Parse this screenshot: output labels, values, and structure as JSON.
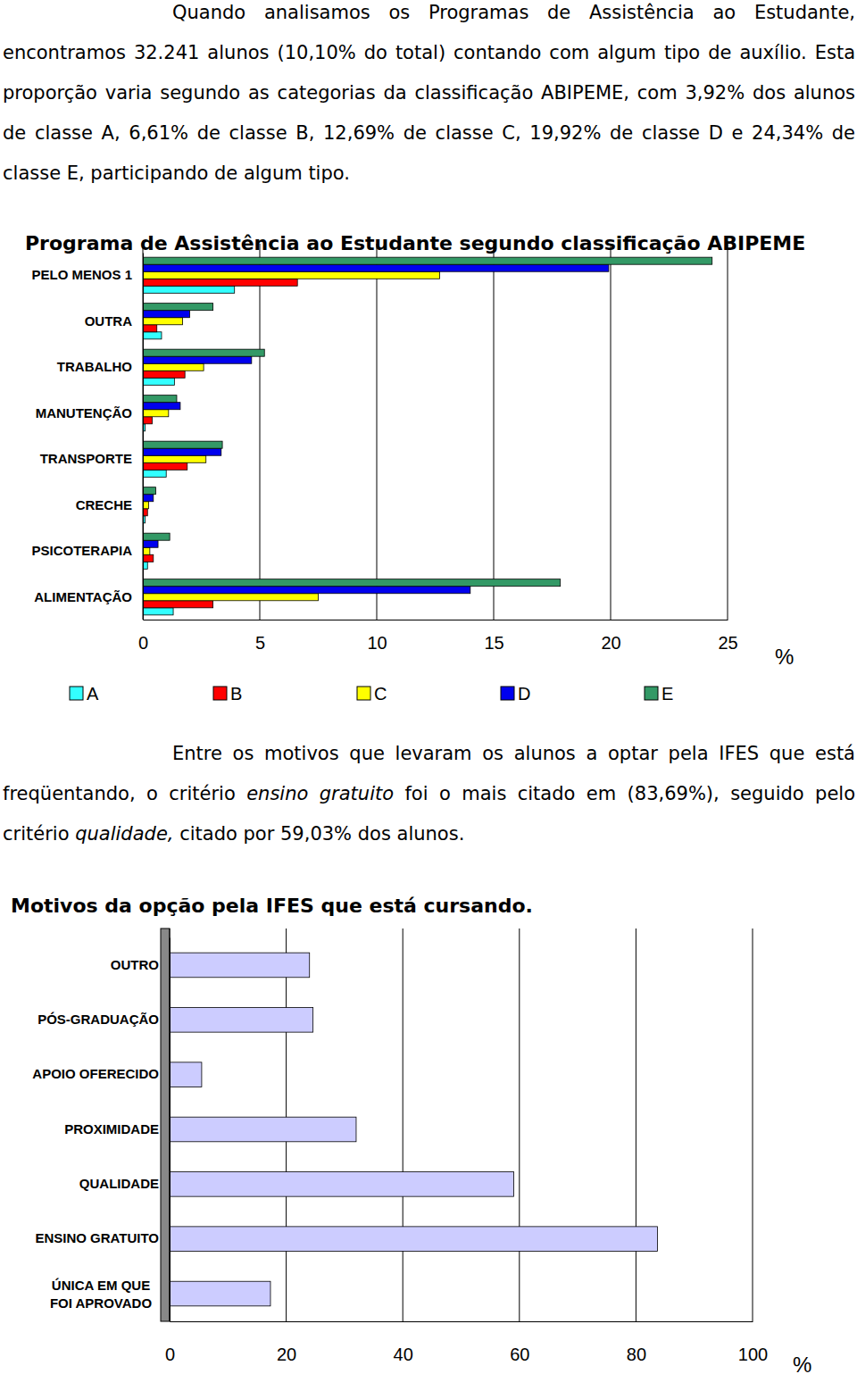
{
  "paragraphs": [
    {
      "runs": [
        {
          "text": "Quando analisamos os Programas de Assistência ao Estudante, encontramos 32.241 alunos (10,10% do total) contando com algum tipo de auxílio. Esta proporção varia segundo as categorias da classificação ABIPEME, com 3,92% dos alunos de classe A, 6,61% de classe B, 12,69% de classe C, 19,92% de classe D e 24,34% de classe E, participando de algum tipo."
        }
      ]
    },
    {
      "runs": [
        {
          "text": "Entre os motivos que levaram os alunos a optar pela IFES que está freqüentando, o critério "
        },
        {
          "text": "ensino gratuito",
          "italic": true
        },
        {
          "text": " foi o mais citado em (83,69%), seguido pelo critério "
        },
        {
          "text": "qualidade,",
          "italic": true
        },
        {
          "text": " citado por 59,03% dos alunos."
        }
      ]
    }
  ],
  "chart_data": [
    {
      "type": "bar",
      "orientation": "horizontal",
      "title": "Programa de Assistência ao Estudante segundo classificação ABIPEME",
      "categories": [
        "PELO MENOS 1",
        "OUTRA",
        "TRABALHO",
        "MANUTENÇÃO",
        "TRANSPORTE",
        "CRECHE",
        "PSICOTERAPIA",
        "ALIMENTAÇÃO"
      ],
      "series": [
        {
          "name": "A",
          "color": "#33ffff",
          "values": [
            3.92,
            0.8,
            1.35,
            0.1,
            1.0,
            0.1,
            0.2,
            1.3
          ]
        },
        {
          "name": "B",
          "color": "#ff0000",
          "values": [
            6.61,
            0.6,
            1.8,
            0.4,
            1.9,
            0.2,
            0.45,
            3.0
          ]
        },
        {
          "name": "C",
          "color": "#ffff00",
          "values": [
            12.69,
            1.7,
            2.6,
            1.1,
            2.7,
            0.25,
            0.3,
            7.5
          ]
        },
        {
          "name": "D",
          "color": "#0000ee",
          "values": [
            19.92,
            2.0,
            4.65,
            1.6,
            3.35,
            0.45,
            0.65,
            14.0
          ]
        },
        {
          "name": "E",
          "color": "#339966",
          "values": [
            24.34,
            3.0,
            5.2,
            1.45,
            3.4,
            0.55,
            1.15,
            17.85
          ]
        }
      ],
      "xlim": [
        0,
        25
      ],
      "xticks": [
        0,
        5,
        10,
        15,
        20,
        25
      ],
      "xlabel": "%",
      "grid": true,
      "legend": "bottom"
    },
    {
      "type": "bar",
      "orientation": "horizontal",
      "title": "Motivos da opção pela IFES que está cursando.",
      "categories": [
        "OUTRO",
        "PÓS-GRADUAÇÃO",
        "APOIO OFERECIDO",
        "PROXIMIDADE",
        "QUALIDADE",
        "ENSINO GRATUITO",
        "ÚNICA EM QUE FOI APROVADO"
      ],
      "values": [
        24.0,
        24.6,
        5.5,
        32.0,
        59.03,
        83.69,
        17.3
      ],
      "color": "#ccccff",
      "xlim": [
        0,
        100
      ],
      "xticks": [
        0,
        20,
        40,
        60,
        80,
        100
      ],
      "xlabel": "%",
      "grid": true
    }
  ]
}
